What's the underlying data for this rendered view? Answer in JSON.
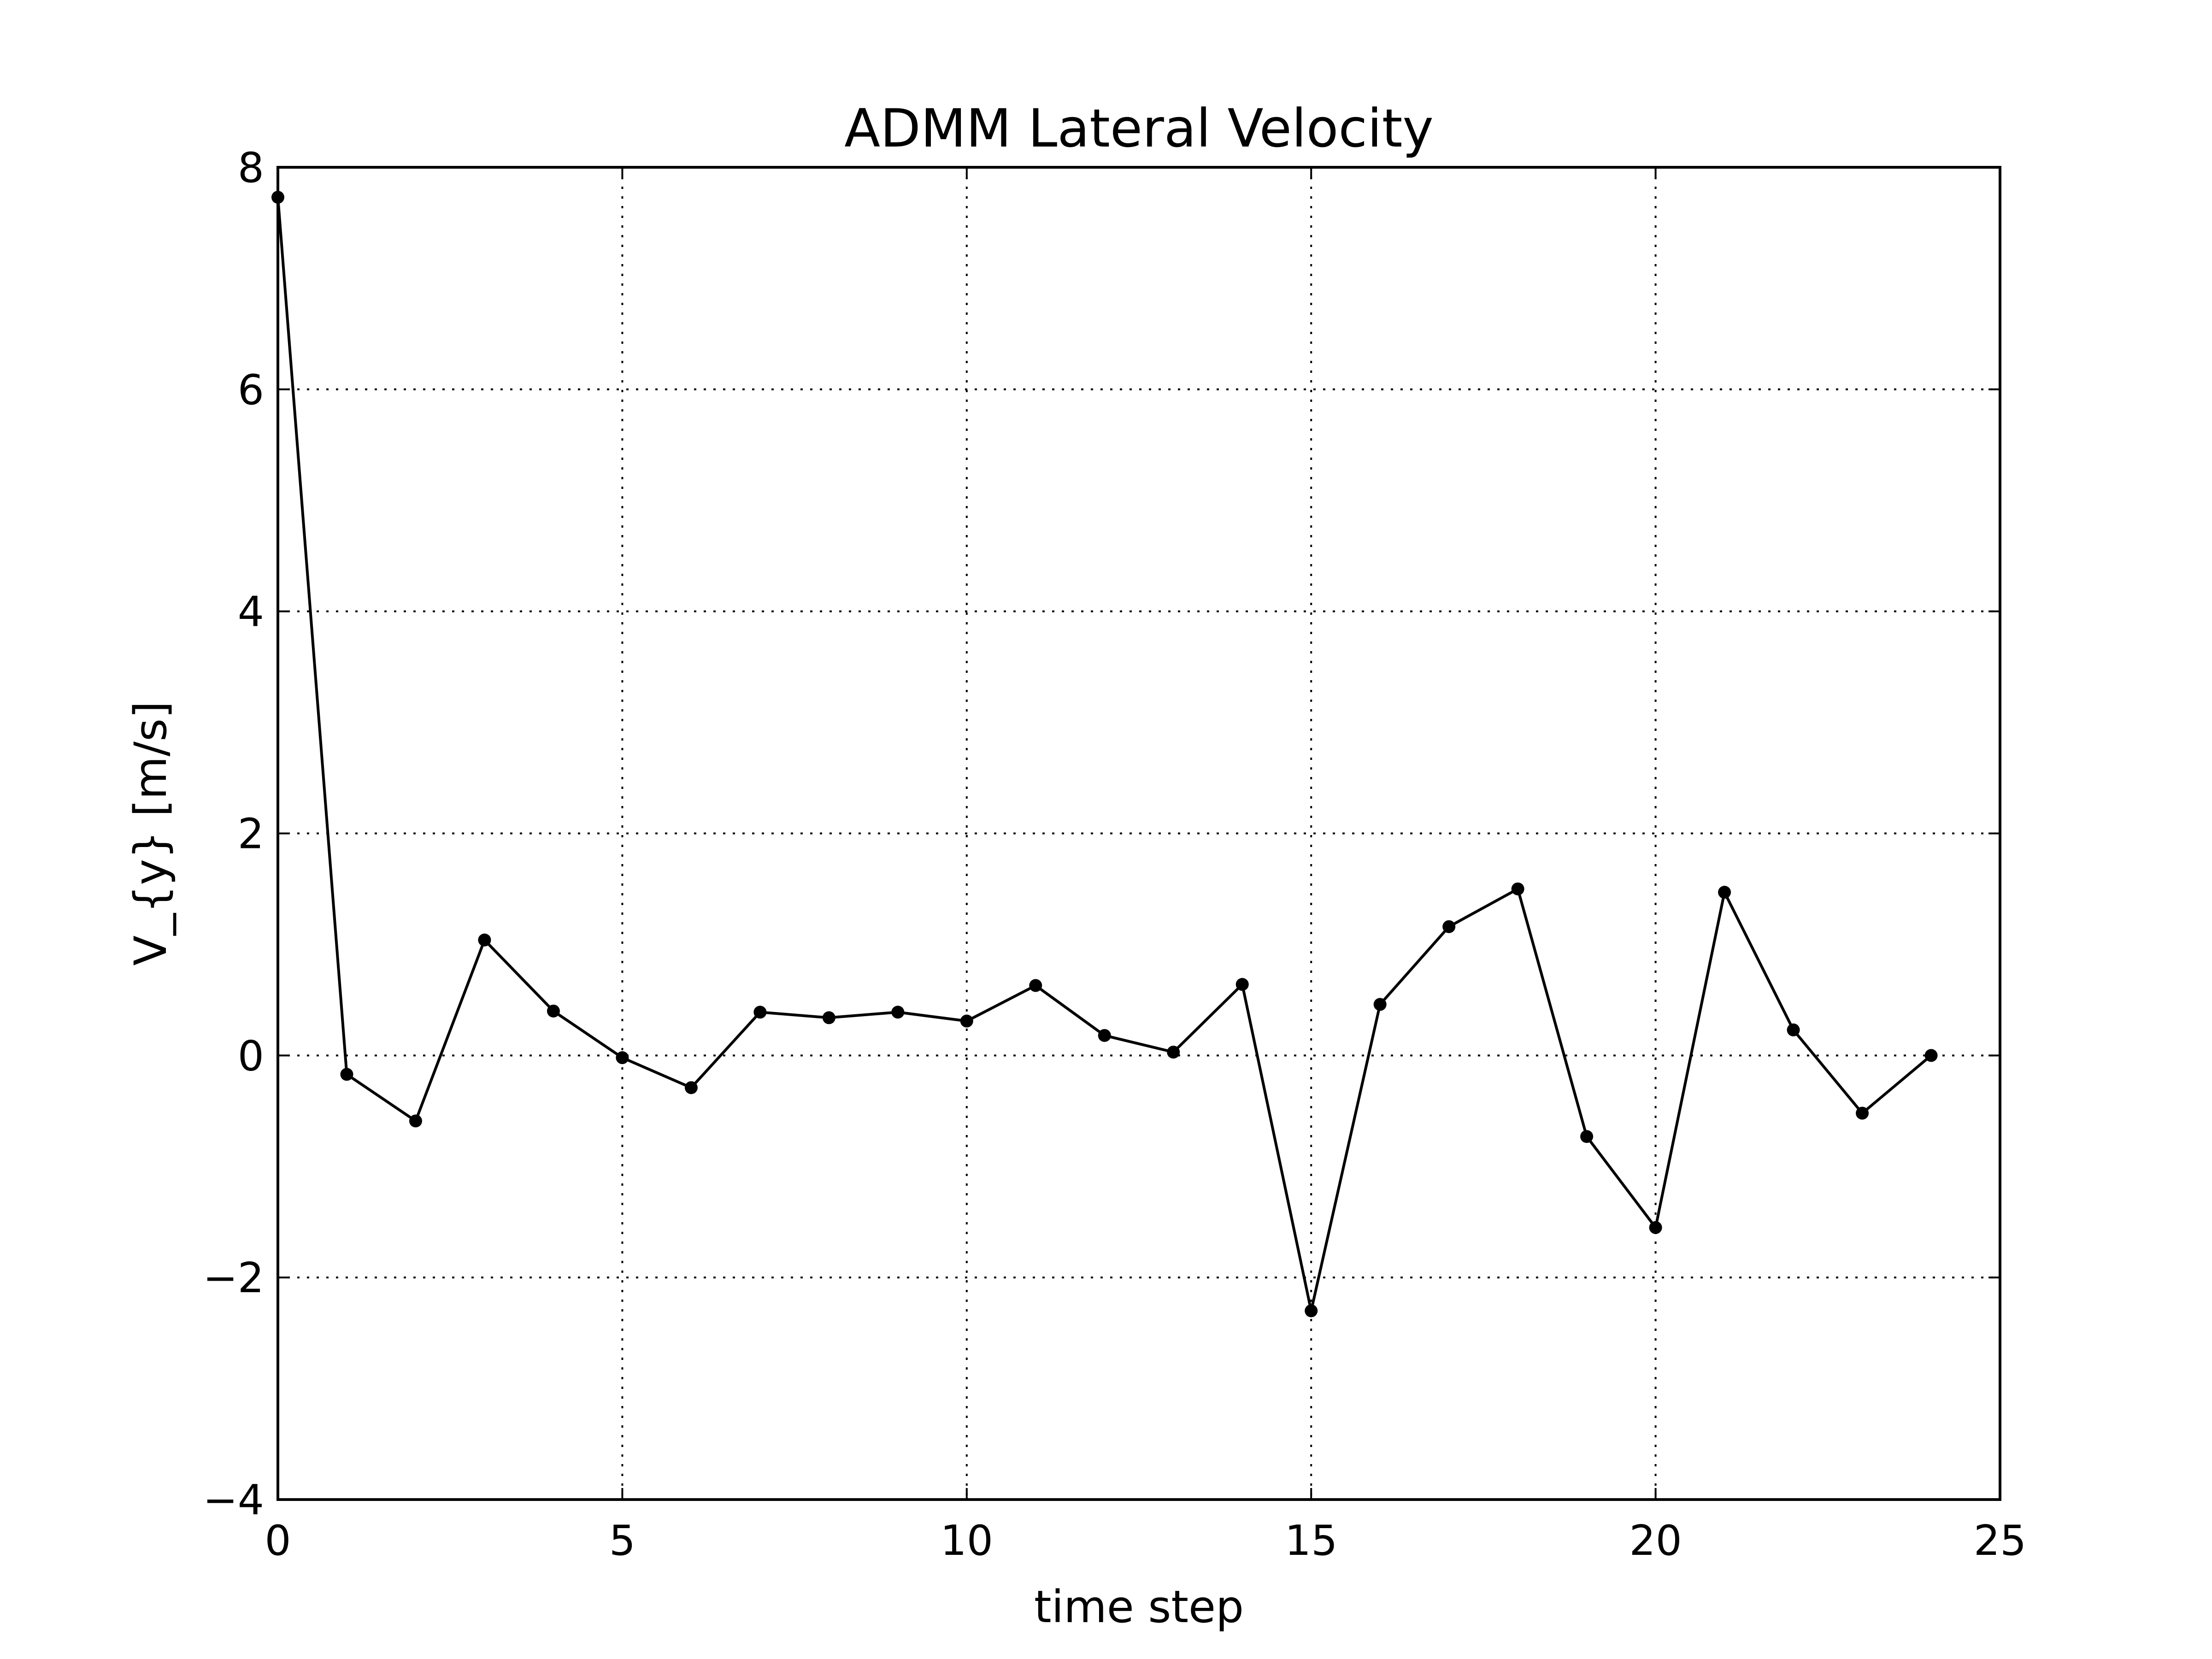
{
  "chart_data": {
    "type": "line",
    "title": "ADMM Lateral Velocity",
    "xlabel": "time step",
    "ylabel": "V_{y} [m/s]",
    "xlim": [
      0,
      25
    ],
    "ylim": [
      -4,
      8
    ],
    "x_ticks": [
      0,
      5,
      10,
      15,
      20,
      25
    ],
    "x_tick_labels": [
      "0",
      "5",
      "10",
      "15",
      "20",
      "25"
    ],
    "y_ticks": [
      -4,
      -2,
      0,
      2,
      4,
      6,
      8
    ],
    "y_tick_labels": [
      "−4",
      "−2",
      "0",
      "2",
      "4",
      "6",
      "8"
    ],
    "grid": true,
    "grid_style": "dotted",
    "series": [
      {
        "color": "#000000",
        "marker": "dot",
        "x": [
          0,
          1,
          2,
          3,
          4,
          5,
          6,
          7,
          8,
          9,
          10,
          11,
          12,
          13,
          14,
          15,
          16,
          17,
          18,
          19,
          20,
          21,
          22,
          23,
          24
        ],
        "values": [
          7.73,
          -0.17,
          -0.59,
          1.04,
          0.4,
          -0.02,
          -0.29,
          0.39,
          0.34,
          0.39,
          0.31,
          0.63,
          0.18,
          0.03,
          0.64,
          -2.3,
          0.46,
          1.16,
          1.5,
          -0.73,
          -1.55,
          1.47,
          0.23,
          -0.52,
          0.0
        ]
      }
    ]
  }
}
